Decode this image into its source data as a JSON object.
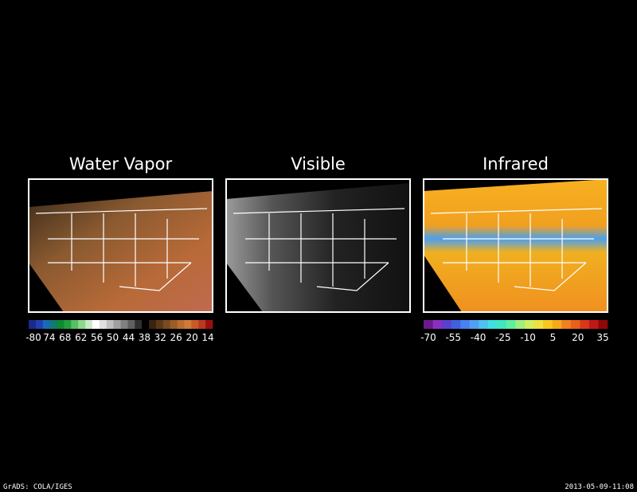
{
  "panels": [
    {
      "title": "Water Vapor",
      "colorbar": {
        "labels": [
          "-80",
          "74",
          "68",
          "62",
          "56",
          "50",
          "44",
          "38",
          "32",
          "26",
          "20",
          "14"
        ],
        "colors": [
          "#1a2a8a",
          "#2040b0",
          "#1a6ab8",
          "#127a70",
          "#0e8a30",
          "#22a040",
          "#58c060",
          "#90d890",
          "#c8ecc8",
          "#ffffff",
          "#e0e0e0",
          "#c0c0c0",
          "#a0a0a0",
          "#808080",
          "#606060",
          "#303030",
          "#000000",
          "#3a2410",
          "#5a3818",
          "#7a4a20",
          "#9a5c28",
          "#b86e30",
          "#d07a38",
          "#c85a28",
          "#b83a20",
          "#9a1010"
        ]
      }
    },
    {
      "title": "Visible"
    },
    {
      "title": "Infrared",
      "colorbar": {
        "labels": [
          "-70",
          "-55",
          "-40",
          "-25",
          "-10",
          "5",
          "20",
          "35"
        ],
        "colors": [
          "#6a1a8a",
          "#8a30c0",
          "#5a40d0",
          "#4060e0",
          "#4a80f0",
          "#50a0f0",
          "#50c0f0",
          "#40e0e0",
          "#40e8c0",
          "#60f0a0",
          "#a0f080",
          "#d0f060",
          "#f0e040",
          "#f8c820",
          "#f8a818",
          "#f08020",
          "#e86018",
          "#d83818",
          "#c01818",
          "#900808"
        ]
      }
    }
  ],
  "footer": {
    "left": "GrADS: COLA/IGES",
    "right": "2013-05-09-11:08"
  }
}
